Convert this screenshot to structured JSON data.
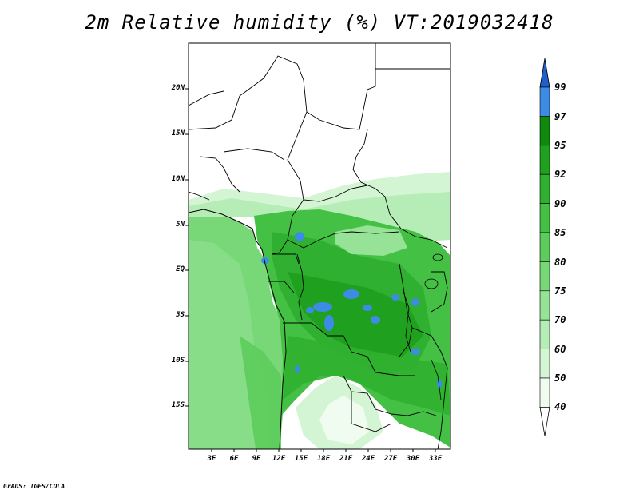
{
  "title": "2m Relative humidity (%) VT:2019032418",
  "credit": "GrADS: IGES/COLA",
  "map": {
    "lat_ticks": [
      "20N",
      "15N",
      "10N",
      "5N",
      "EQ",
      "5S",
      "10S",
      "15S"
    ],
    "lon_ticks": [
      "3E",
      "6E",
      "9E",
      "12E",
      "15E",
      "18E",
      "21E",
      "24E",
      "27E",
      "30E",
      "33E"
    ]
  },
  "colorbar": {
    "labels": [
      "99",
      "97",
      "95",
      "92",
      "90",
      "85",
      "80",
      "75",
      "70",
      "60",
      "50",
      "40"
    ],
    "colors": [
      "#1e5fc8",
      "#3c8ce6",
      "#0f8a0f",
      "#1fa11f",
      "#30b030",
      "#44c044",
      "#5ccd5c",
      "#78d878",
      "#96e296",
      "#b6ecb6",
      "#d4f5d4",
      "#f0fcf0"
    ],
    "top_color": "#1e5fc8",
    "bottom_color": "#ffffff"
  }
}
